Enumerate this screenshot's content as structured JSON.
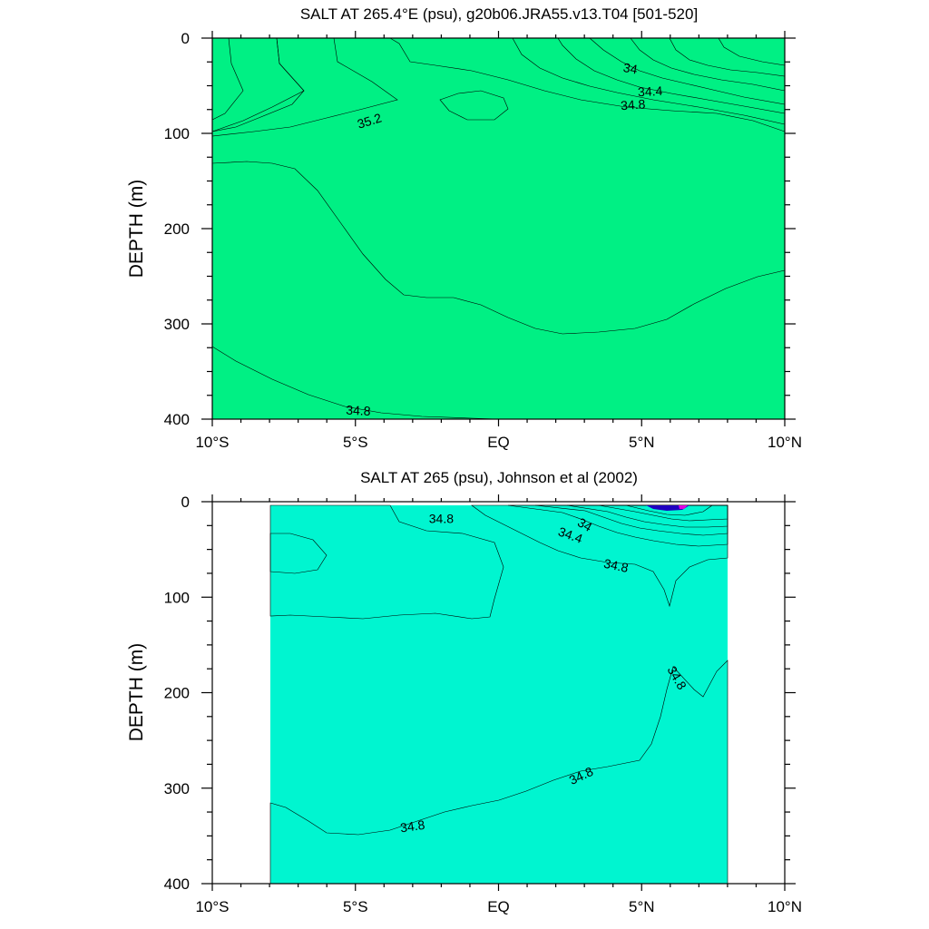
{
  "chart_data": [
    {
      "type": "filled-contour",
      "title": "SALT AT 265.4°E (psu), g20b06.JRA55.v13.T04 [501-520]",
      "ylabel": "DEPTH (m)",
      "xlabel": "",
      "x_ticks": [
        "10°S",
        "5°S",
        "EQ",
        "5°N",
        "10°N"
      ],
      "x_tick_values": [
        -10,
        -5,
        0,
        5,
        10
      ],
      "y_ticks": [
        "0",
        "100",
        "200",
        "300",
        "400"
      ],
      "y_tick_values": [
        0,
        100,
        200,
        300,
        400
      ],
      "xlim": [
        -10,
        10
      ],
      "ylim": [
        0,
        400
      ],
      "y_inverted": true,
      "data_xlim": [
        -10,
        10
      ],
      "contour_labels": [
        {
          "text": "34",
          "lat": 4.6,
          "depth": 33,
          "angle": 10
        },
        {
          "text": "34.4",
          "lat": 5.3,
          "depth": 57,
          "angle": -3
        },
        {
          "text": "34.8",
          "lat": 4.7,
          "depth": 71,
          "angle": -4
        },
        {
          "text": "35.2",
          "lat": -4.5,
          "depth": 88,
          "angle": -17
        },
        {
          "text": "34.8",
          "lat": -4.9,
          "depth": 392,
          "angle": 3
        }
      ],
      "regions": [
        {
          "level": "34.8-35.0",
          "color": "#00f5d0"
        },
        {
          "level": "35.0-35.2",
          "color": "#00f084"
        },
        {
          "level": "35.2-35.4",
          "color": "#00f000"
        },
        {
          "level": "35.4-35.6",
          "color": "#36f036"
        },
        {
          "level": "35.6-35.8",
          "color": "#96f500"
        },
        {
          "level": "35.8-36.0",
          "color": "#f5f500"
        }
      ]
    },
    {
      "type": "filled-contour",
      "title": "SALT AT 265 (psu), Johnson et al (2002)",
      "ylabel": "DEPTH (m)",
      "xlabel": "",
      "x_ticks": [
        "10°S",
        "5°S",
        "EQ",
        "5°N",
        "10°N"
      ],
      "x_tick_values": [
        -10,
        -5,
        0,
        5,
        10
      ],
      "y_ticks": [
        "0",
        "100",
        "200",
        "300",
        "400"
      ],
      "y_tick_values": [
        0,
        100,
        200,
        300,
        400
      ],
      "xlim": [
        -10,
        10
      ],
      "ylim": [
        0,
        400
      ],
      "y_inverted": true,
      "data_xlim": [
        -8,
        8
      ],
      "contour_labels": [
        {
          "text": "34.8",
          "lat": -2.0,
          "depth": 19,
          "angle": 0
        },
        {
          "text": "34",
          "lat": 3.0,
          "depth": 25,
          "angle": 30
        },
        {
          "text": "34.4",
          "lat": 2.5,
          "depth": 36,
          "angle": 20
        },
        {
          "text": "34.8",
          "lat": 4.1,
          "depth": 68,
          "angle": 12
        },
        {
          "text": "34.8",
          "lat": 6.2,
          "depth": 185,
          "angle": 60
        },
        {
          "text": "34.8",
          "lat": 2.9,
          "depth": 288,
          "angle": -25
        },
        {
          "text": "34.8",
          "lat": -3.0,
          "depth": 341,
          "angle": -8
        }
      ],
      "regions": [
        {
          "level": "34.8-35.0",
          "color": "#00f5d0"
        },
        {
          "level": "35.0-35.2",
          "color": "#00f084"
        },
        {
          "level": "35.2-35.4",
          "color": "#00f000"
        }
      ]
    }
  ]
}
